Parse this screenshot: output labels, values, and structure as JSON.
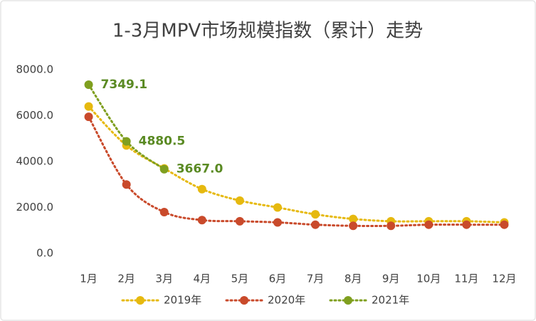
{
  "chart_data": {
    "type": "line",
    "title": "1-3月MPV市场规模指数（累计）走势",
    "categories": [
      "1月",
      "2月",
      "3月",
      "4月",
      "5月",
      "6月",
      "7月",
      "8月",
      "9月",
      "10月",
      "11月",
      "12月"
    ],
    "series": [
      {
        "name": "2019年",
        "color": "#e6b90f",
        "values": [
          6400,
          4700,
          3700,
          2800,
          2300,
          2000,
          1700,
          1500,
          1400,
          1400,
          1400,
          1350
        ]
      },
      {
        "name": "2020年",
        "color": "#c94a2b",
        "values": [
          5950,
          3000,
          1800,
          1450,
          1400,
          1350,
          1250,
          1200,
          1200,
          1250,
          1250,
          1250
        ]
      },
      {
        "name": "2021年",
        "color": "#7f9f1f",
        "values": [
          7349.1,
          4880.5,
          3667.0,
          null,
          null,
          null,
          null,
          null,
          null,
          null,
          null,
          null
        ],
        "value_labels": [
          "7349.1",
          "4880.5",
          "3667.0",
          null,
          null,
          null,
          null,
          null,
          null,
          null,
          null,
          null
        ]
      }
    ],
    "ylim": [
      0,
      8000
    ],
    "yticks": [
      {
        "value": 0,
        "label": "0.0"
      },
      {
        "value": 2000,
        "label": "2000.0"
      },
      {
        "value": 4000,
        "label": "4000.0"
      },
      {
        "value": 6000,
        "label": "6000.0"
      },
      {
        "value": 8000,
        "label": "8000.0"
      }
    ],
    "grid": false,
    "legend": "bottom"
  }
}
